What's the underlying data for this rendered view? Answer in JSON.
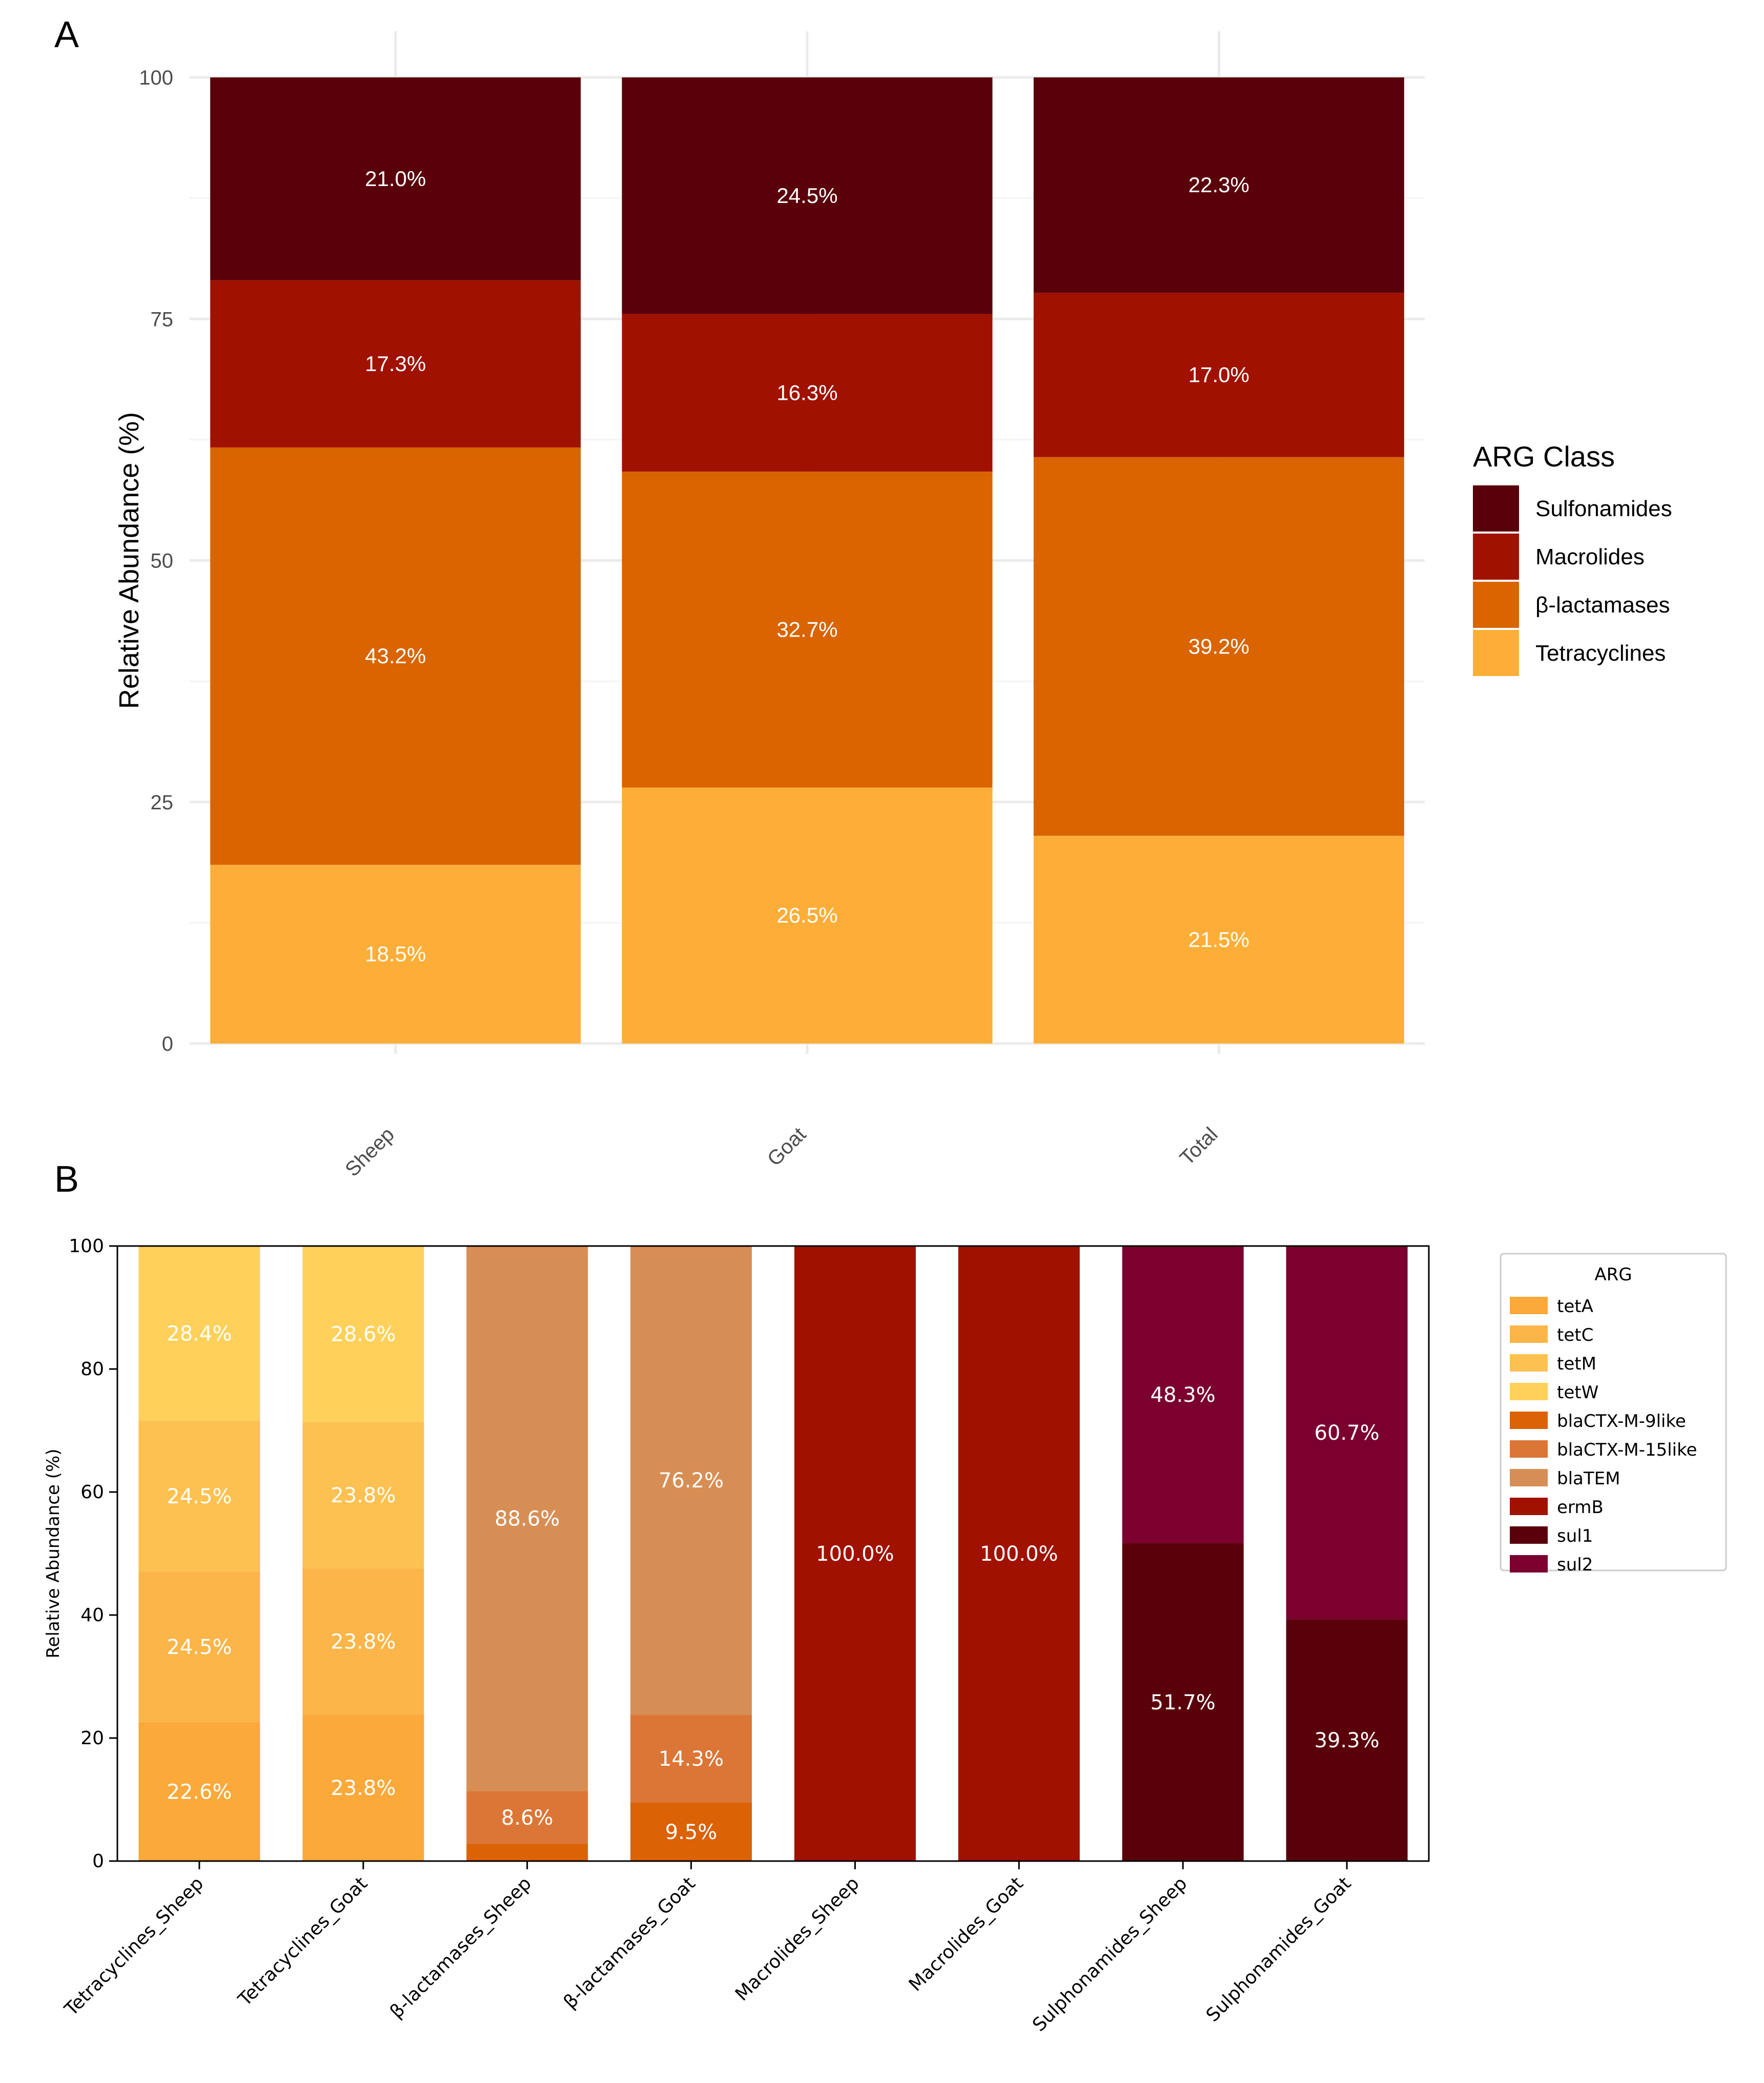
{
  "panels": {
    "a_label": "A",
    "b_label": "B"
  },
  "chart_data": [
    {
      "type": "bar",
      "stacked": true,
      "title": "",
      "xlabel": "",
      "ylabel": "Relative Abundance (%)",
      "ylim": [
        0,
        100
      ],
      "yticks": [
        0,
        25,
        50,
        75,
        100
      ],
      "grid": true,
      "categories": [
        "Sheep",
        "Goat",
        "Total"
      ],
      "series": [
        {
          "name": "Tetracyclines",
          "color": "#FDAE38",
          "values": [
            18.5,
            26.5,
            21.5
          ],
          "labels": [
            "18.5%",
            "26.5%",
            "21.5%"
          ]
        },
        {
          "name": "β-lactamases",
          "color": "#D96400",
          "values": [
            43.2,
            32.7,
            39.2
          ],
          "labels": [
            "43.2%",
            "32.7%",
            "39.2%"
          ]
        },
        {
          "name": "Macrolides",
          "color": "#A11100",
          "values": [
            17.3,
            16.3,
            17.0
          ],
          "labels": [
            "17.3%",
            "16.3%",
            "17.0%"
          ]
        },
        {
          "name": "Sulfonamides",
          "color": "#5A000A",
          "values": [
            21.0,
            24.5,
            22.3
          ],
          "labels": [
            "21.0%",
            "24.5%",
            "22.3%"
          ]
        }
      ],
      "legend": {
        "title": "ARG Class",
        "position": "right",
        "items": [
          "Sulfonamides",
          "Macrolides",
          "β-lactamases",
          "Tetracyclines"
        ]
      }
    },
    {
      "type": "bar",
      "stacked": true,
      "title": "",
      "xlabel": "",
      "ylabel": "Relative Abundance (%)",
      "ylim": [
        0,
        100
      ],
      "yticks": [
        0,
        20,
        40,
        60,
        80,
        100
      ],
      "grid": false,
      "categories": [
        "Tetracyclines_Sheep",
        "Tetracyclines_Goat",
        "β-lactamases_Sheep",
        "β-lactamases_Goat",
        "Macrolides_Sheep",
        "Macrolides_Goat",
        "Sulphonamides_Sheep",
        "Sulphonamides_Goat"
      ],
      "series": [
        {
          "name": "tetA",
          "color": "#FAA93A",
          "values": [
            22.6,
            23.8,
            0,
            0,
            0,
            0,
            0,
            0
          ],
          "labels": [
            "22.6%",
            "23.8%",
            "",
            "",
            "",
            "",
            "",
            ""
          ]
        },
        {
          "name": "tetC",
          "color": "#FBB548",
          "values": [
            24.5,
            23.8,
            0,
            0,
            0,
            0,
            0,
            0
          ],
          "labels": [
            "24.5%",
            "23.8%",
            "",
            "",
            "",
            "",
            "",
            ""
          ]
        },
        {
          "name": "tetM",
          "color": "#FDC152",
          "values": [
            24.5,
            23.8,
            0,
            0,
            0,
            0,
            0,
            0
          ],
          "labels": [
            "24.5%",
            "23.8%",
            "",
            "",
            "",
            "",
            "",
            ""
          ]
        },
        {
          "name": "tetW",
          "color": "#FFD15A",
          "values": [
            28.4,
            28.6,
            0,
            0,
            0,
            0,
            0,
            0
          ],
          "labels": [
            "28.4%",
            "28.6%",
            "",
            "",
            "",
            "",
            "",
            ""
          ]
        },
        {
          "name": "blaCTX-M-9like",
          "color": "#DB6205",
          "values": [
            0,
            0,
            2.8,
            9.5,
            0,
            0,
            0,
            0
          ],
          "labels": [
            "",
            "",
            "",
            "9.5%",
            "",
            "",
            "",
            ""
          ]
        },
        {
          "name": "blaCTX-M-15like",
          "color": "#DB7637",
          "values": [
            0,
            0,
            8.6,
            14.3,
            0,
            0,
            0,
            0
          ],
          "labels": [
            "",
            "",
            "8.6%",
            "14.3%",
            "",
            "",
            "",
            ""
          ]
        },
        {
          "name": "blaTEM",
          "color": "#D78E55",
          "values": [
            0,
            0,
            88.6,
            76.2,
            0,
            0,
            0,
            0
          ],
          "labels": [
            "",
            "",
            "88.6%",
            "76.2%",
            "",
            "",
            "",
            ""
          ]
        },
        {
          "name": "ermB",
          "color": "#A11100",
          "values": [
            0,
            0,
            0,
            0,
            100.0,
            100.0,
            0,
            0
          ],
          "labels": [
            "",
            "",
            "",
            "",
            "100.0%",
            "100.0%",
            "",
            ""
          ]
        },
        {
          "name": "sul1",
          "color": "#5A000A",
          "values": [
            0,
            0,
            0,
            0,
            0,
            0,
            51.7,
            39.3
          ],
          "labels": [
            "",
            "",
            "",
            "",
            "",
            "",
            "51.7%",
            "39.3%"
          ]
        },
        {
          "name": "sul2",
          "color": "#7B0030",
          "values": [
            0,
            0,
            0,
            0,
            0,
            0,
            48.3,
            60.7
          ],
          "labels": [
            "",
            "",
            "",
            "",
            "",
            "",
            "48.3%",
            "60.7%"
          ]
        }
      ],
      "legend": {
        "title": "ARG",
        "position": "right",
        "items": [
          "tetA",
          "tetC",
          "tetM",
          "tetW",
          "blaCTX-M-9like",
          "blaCTX-M-15like",
          "blaTEM",
          "ermB",
          "sul1",
          "sul2"
        ]
      }
    }
  ]
}
